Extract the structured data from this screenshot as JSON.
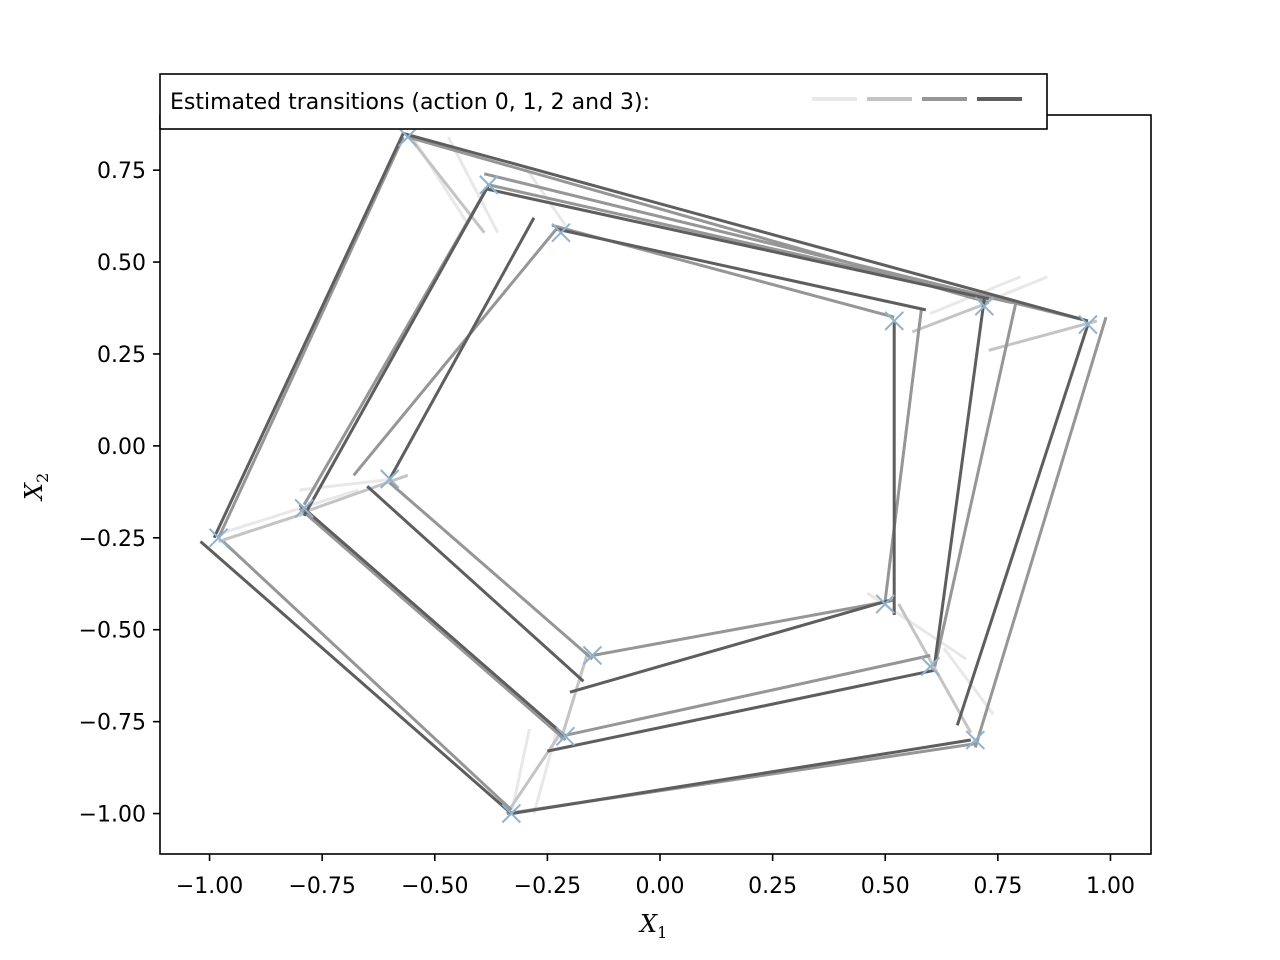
{
  "chart_data": {
    "type": "line",
    "legend": {
      "label": "Estimated transitions (action 0, 1, 2 and 3):",
      "placement": "top-left"
    },
    "xlabel_main": "X",
    "xlabel_sub": "1",
    "ylabel_main": "X",
    "ylabel_sub": "2",
    "xlim": [
      -1.11,
      1.09
    ],
    "ylim": [
      -1.11,
      0.9
    ],
    "xticks": [
      -1.0,
      -0.75,
      -0.5,
      -0.25,
      0.0,
      0.25,
      0.5,
      0.75,
      1.0
    ],
    "xtick_labels": [
      "−1.00",
      "−0.75",
      "−0.50",
      "−0.25",
      "0.00",
      "0.25",
      "0.50",
      "0.75",
      "1.00"
    ],
    "yticks": [
      -1.0,
      -0.75,
      -0.5,
      -0.25,
      0.0,
      0.25,
      0.5,
      0.75
    ],
    "ytick_labels": [
      "−1.00",
      "−0.75",
      "−0.50",
      "−0.25",
      "0.00",
      "0.25",
      "0.50",
      "0.75"
    ],
    "grid": false,
    "colors": {
      "action_0": "#e8e8e8",
      "action_1": "#c4c4c4",
      "action_2": "#969696",
      "action_3": "#5e5e5e",
      "state_marker": "#8fb3cf"
    },
    "states": [
      [
        -0.56,
        0.84
      ],
      [
        -0.38,
        0.71
      ],
      [
        -0.22,
        0.58
      ],
      [
        0.52,
        0.34
      ],
      [
        0.72,
        0.38
      ],
      [
        0.95,
        0.33
      ],
      [
        0.7,
        -0.8
      ],
      [
        0.6,
        -0.6
      ],
      [
        0.5,
        -0.43
      ],
      [
        -0.15,
        -0.57
      ],
      [
        -0.21,
        -0.79
      ],
      [
        -0.33,
        -1.0
      ],
      [
        -0.98,
        -0.25
      ],
      [
        -0.79,
        -0.17
      ],
      [
        -0.6,
        -0.09
      ]
    ],
    "transitions": [
      {
        "action": 0,
        "from": [
          -0.55,
          0.84
        ],
        "to": [
          -0.43,
          0.61
        ]
      },
      {
        "action": 0,
        "from": [
          -0.47,
          0.84
        ],
        "to": [
          -0.36,
          0.58
        ]
      },
      {
        "action": 0,
        "from": [
          -0.3,
          0.76
        ],
        "to": [
          -0.21,
          0.6
        ]
      },
      {
        "action": 0,
        "from": [
          0.72,
          0.39
        ],
        "to": [
          0.86,
          0.46
        ]
      },
      {
        "action": 0,
        "from": [
          0.6,
          0.36
        ],
        "to": [
          0.8,
          0.46
        ]
      },
      {
        "action": 0,
        "from": [
          0.46,
          -0.4
        ],
        "to": [
          0.68,
          -0.58
        ]
      },
      {
        "action": 0,
        "from": [
          0.63,
          -0.55
        ],
        "to": [
          0.74,
          -0.73
        ]
      },
      {
        "action": 0,
        "from": [
          -0.98,
          -0.24
        ],
        "to": [
          -0.67,
          -0.12
        ]
      },
      {
        "action": 0,
        "from": [
          -0.8,
          -0.12
        ],
        "to": [
          -0.59,
          -0.09
        ]
      },
      {
        "action": 0,
        "from": [
          -0.33,
          -1.0
        ],
        "to": [
          -0.29,
          -0.77
        ]
      },
      {
        "action": 0,
        "from": [
          -0.28,
          -1.0
        ],
        "to": [
          -0.23,
          -0.78
        ]
      },
      {
        "action": 1,
        "from": [
          -0.55,
          0.83
        ],
        "to": [
          -0.39,
          0.58
        ]
      },
      {
        "action": 1,
        "from": [
          0.56,
          0.31
        ],
        "to": [
          0.73,
          0.39
        ]
      },
      {
        "action": 1,
        "from": [
          0.73,
          0.26
        ],
        "to": [
          0.97,
          0.34
        ]
      },
      {
        "action": 1,
        "from": [
          0.53,
          -0.43
        ],
        "to": [
          0.69,
          -0.78
        ]
      },
      {
        "action": 1,
        "from": [
          -0.98,
          -0.26
        ],
        "to": [
          -0.78,
          -0.18
        ]
      },
      {
        "action": 1,
        "from": [
          -0.79,
          -0.18
        ],
        "to": [
          -0.56,
          -0.08
        ]
      },
      {
        "action": 1,
        "from": [
          -0.34,
          -1.0
        ],
        "to": [
          -0.22,
          -0.78
        ]
      },
      {
        "action": 1,
        "from": [
          -0.22,
          -0.8
        ],
        "to": [
          -0.16,
          -0.56
        ]
      },
      {
        "action": 2,
        "from": [
          -0.56,
          0.84
        ],
        "to": [
          0.73,
          0.39
        ]
      },
      {
        "action": 2,
        "from": [
          -0.39,
          0.74
        ],
        "to": [
          0.95,
          0.34
        ]
      },
      {
        "action": 2,
        "from": [
          -0.24,
          0.6
        ],
        "to": [
          0.52,
          0.35
        ]
      },
      {
        "action": 2,
        "from": [
          -0.38,
          0.71
        ],
        "to": [
          0.78,
          0.39
        ]
      },
      {
        "action": 2,
        "from": [
          0.58,
          0.37
        ],
        "to": [
          0.5,
          -0.42
        ]
      },
      {
        "action": 2,
        "from": [
          0.79,
          0.39
        ],
        "to": [
          0.61,
          -0.6
        ]
      },
      {
        "action": 2,
        "from": [
          0.99,
          0.35
        ],
        "to": [
          0.7,
          -0.82
        ]
      },
      {
        "action": 2,
        "from": [
          0.7,
          -0.81
        ],
        "to": [
          -0.34,
          -1.0
        ]
      },
      {
        "action": 2,
        "from": [
          0.6,
          -0.57
        ],
        "to": [
          -0.22,
          -0.79
        ]
      },
      {
        "action": 2,
        "from": [
          0.52,
          -0.42
        ],
        "to": [
          -0.15,
          -0.57
        ]
      },
      {
        "action": 2,
        "from": [
          -0.33,
          -0.99
        ],
        "to": [
          -0.97,
          -0.26
        ]
      },
      {
        "action": 2,
        "from": [
          -0.21,
          -0.8
        ],
        "to": [
          -0.8,
          -0.17
        ]
      },
      {
        "action": 2,
        "from": [
          -0.15,
          -0.58
        ],
        "to": [
          -0.6,
          -0.1
        ]
      },
      {
        "action": 2,
        "from": [
          -0.98,
          -0.25
        ],
        "to": [
          -0.57,
          0.84
        ]
      },
      {
        "action": 2,
        "from": [
          -0.79,
          -0.16
        ],
        "to": [
          -0.38,
          0.71
        ]
      },
      {
        "action": 2,
        "from": [
          -0.68,
          -0.08
        ],
        "to": [
          -0.23,
          0.59
        ]
      },
      {
        "action": 3,
        "from": [
          -0.57,
          0.85
        ],
        "to": [
          0.95,
          0.34
        ]
      },
      {
        "action": 3,
        "from": [
          -0.39,
          0.7
        ],
        "to": [
          0.73,
          0.4
        ]
      },
      {
        "action": 3,
        "from": [
          -0.23,
          0.59
        ],
        "to": [
          0.59,
          0.37
        ]
      },
      {
        "action": 3,
        "from": [
          0.52,
          0.34
        ],
        "to": [
          0.52,
          -0.46
        ]
      },
      {
        "action": 3,
        "from": [
          0.72,
          0.4
        ],
        "to": [
          0.61,
          -0.59
        ]
      },
      {
        "action": 3,
        "from": [
          0.95,
          0.33
        ],
        "to": [
          0.66,
          -0.76
        ]
      },
      {
        "action": 3,
        "from": [
          0.69,
          -0.8
        ],
        "to": [
          -0.33,
          -1.0
        ]
      },
      {
        "action": 3,
        "from": [
          0.61,
          -0.61
        ],
        "to": [
          -0.25,
          -0.83
        ]
      },
      {
        "action": 3,
        "from": [
          0.51,
          -0.42
        ],
        "to": [
          -0.2,
          -0.67
        ]
      },
      {
        "action": 3,
        "from": [
          -0.33,
          -1.0
        ],
        "to": [
          -1.02,
          -0.26
        ]
      },
      {
        "action": 3,
        "from": [
          -0.21,
          -0.79
        ],
        "to": [
          -0.8,
          -0.16
        ]
      },
      {
        "action": 3,
        "from": [
          -0.17,
          -0.64
        ],
        "to": [
          -0.65,
          -0.11
        ]
      },
      {
        "action": 3,
        "from": [
          -0.99,
          -0.25
        ],
        "to": [
          -0.57,
          0.85
        ]
      },
      {
        "action": 3,
        "from": [
          -0.79,
          -0.19
        ],
        "to": [
          -0.38,
          0.71
        ]
      },
      {
        "action": 3,
        "from": [
          -0.6,
          -0.09
        ],
        "to": [
          -0.28,
          0.62
        ]
      }
    ]
  }
}
